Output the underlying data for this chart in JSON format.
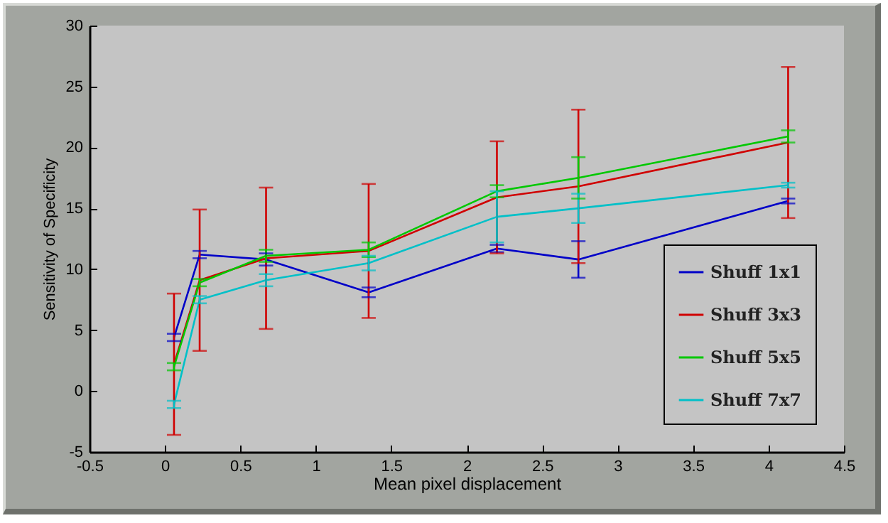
{
  "chart_data": {
    "type": "line",
    "xlabel": "Mean pixel displacement",
    "ylabel": "Sensitivity of Specificity",
    "x": [
      0.06,
      0.23,
      0.67,
      1.35,
      2.2,
      2.74,
      4.13
    ],
    "series": [
      {
        "name": "Shuff 1x1",
        "color": "#0000c8",
        "values": [
          4.4,
          11.2,
          10.8,
          8.1,
          11.7,
          10.8,
          15.6
        ],
        "errors": [
          0.3,
          0.3,
          0.5,
          0.4,
          0.3,
          1.5,
          0.2
        ]
      },
      {
        "name": "Shuff 3x3",
        "color": "#d00000",
        "values": [
          2.2,
          9.1,
          10.9,
          11.5,
          15.9,
          16.8,
          20.4
        ],
        "errors": [
          5.8,
          5.8,
          5.8,
          5.5,
          4.6,
          6.3,
          6.2
        ]
      },
      {
        "name": "Shuff 5x5",
        "color": "#00c800",
        "values": [
          2.0,
          8.9,
          11.1,
          11.6,
          16.4,
          17.5,
          20.9
        ],
        "errors": [
          0.3,
          0.3,
          0.5,
          0.6,
          0.5,
          1.7,
          0.5
        ]
      },
      {
        "name": "Shuff 7x7",
        "color": "#00c0c8",
        "values": [
          -1.1,
          7.5,
          9.1,
          10.5,
          14.3,
          15.0,
          16.9
        ],
        "errors": [
          0.3,
          0.3,
          0.5,
          0.6,
          2.1,
          1.2,
          0.2
        ]
      }
    ],
    "xlim": [
      -0.5,
      4.5
    ],
    "xticks": [
      -0.5,
      0,
      0.5,
      1,
      1.5,
      2,
      2.5,
      3,
      3.5,
      4,
      4.5
    ],
    "ylim": [
      -5,
      30
    ],
    "yticks": [
      -5,
      0,
      5,
      10,
      15,
      20,
      25,
      30
    ],
    "grid": false,
    "legend": "bottom right"
  }
}
